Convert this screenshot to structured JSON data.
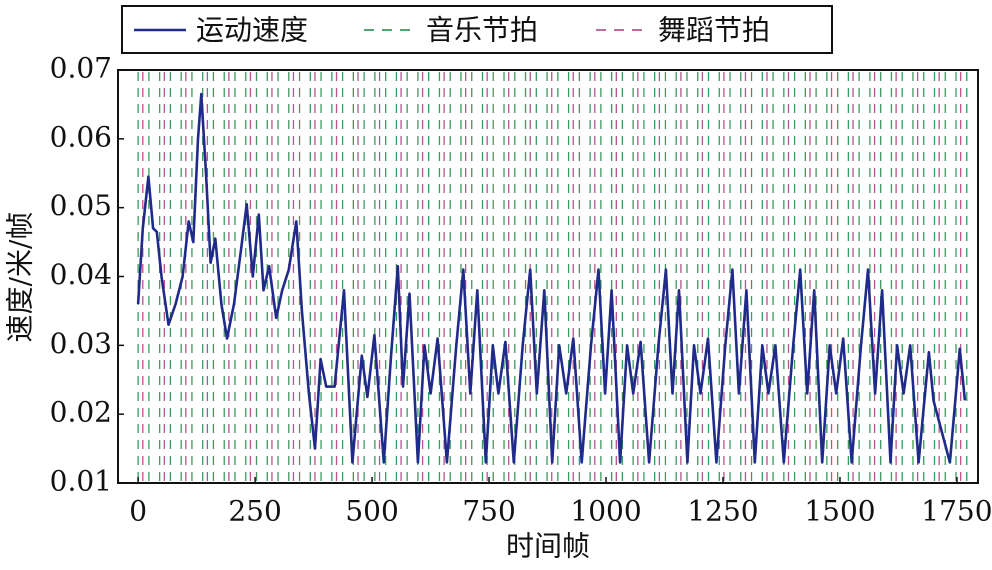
{
  "chart_data": {
    "type": "line",
    "xlabel": "时间帧",
    "ylabel": "速度/米/帧",
    "xlim": [
      -43,
      1795
    ],
    "ylim": [
      0.01,
      0.07
    ],
    "xticks": [
      0,
      250,
      500,
      750,
      1000,
      1250,
      1500,
      1750
    ],
    "yticks": [
      0.01,
      0.02,
      0.03,
      0.04,
      0.05,
      0.06,
      0.07
    ],
    "legend": "top",
    "series": [
      {
        "name": "运动速度",
        "color": "#1f2a8a",
        "x": [
          0,
          10,
          22,
          32,
          40,
          50,
          65,
          80,
          95,
          108,
          118,
          128,
          135,
          145,
          155,
          165,
          178,
          190,
          205,
          220,
          232,
          245,
          258,
          268,
          280,
          295,
          308,
          322,
          338,
          350,
          365,
          378,
          390,
          402,
          420,
          440,
          458,
          478,
          490,
          505,
          525,
          540,
          555,
          566,
          580,
          598,
          612,
          625,
          640,
          660,
          680,
          695,
          710,
          725,
          743,
          758,
          770,
          785,
          803,
          822,
          838,
          852,
          868,
          885,
          900,
          915,
          930,
          948,
          968,
          984,
          998,
          1012,
          1030,
          1045,
          1058,
          1074,
          1092,
          1112,
          1128,
          1142,
          1156,
          1174,
          1188,
          1202,
          1218,
          1236,
          1255,
          1270,
          1284,
          1300,
          1318,
          1334,
          1347,
          1362,
          1380,
          1400,
          1415,
          1430,
          1445,
          1462,
          1478,
          1492,
          1507,
          1525,
          1545,
          1560,
          1575,
          1590,
          1608,
          1622,
          1636,
          1650,
          1668,
          1690,
          1700,
          1735,
          1756,
          1767
        ],
        "values": [
          0.036,
          0.047,
          0.0545,
          0.047,
          0.0465,
          0.04,
          0.033,
          0.036,
          0.04,
          0.048,
          0.045,
          0.06,
          0.0665,
          0.055,
          0.042,
          0.0455,
          0.036,
          0.031,
          0.036,
          0.044,
          0.0505,
          0.04,
          0.049,
          0.038,
          0.0415,
          0.034,
          0.038,
          0.041,
          0.048,
          0.035,
          0.023,
          0.015,
          0.028,
          0.024,
          0.024,
          0.038,
          0.013,
          0.0285,
          0.0225,
          0.0315,
          0.013,
          0.028,
          0.0415,
          0.024,
          0.0375,
          0.013,
          0.03,
          0.023,
          0.031,
          0.013,
          0.03,
          0.041,
          0.023,
          0.038,
          0.013,
          0.03,
          0.023,
          0.0305,
          0.013,
          0.03,
          0.041,
          0.023,
          0.038,
          0.013,
          0.03,
          0.023,
          0.031,
          0.013,
          0.03,
          0.041,
          0.023,
          0.038,
          0.013,
          0.03,
          0.023,
          0.0305,
          0.013,
          0.03,
          0.041,
          0.023,
          0.038,
          0.013,
          0.03,
          0.023,
          0.031,
          0.013,
          0.03,
          0.041,
          0.023,
          0.038,
          0.013,
          0.03,
          0.023,
          0.03,
          0.013,
          0.03,
          0.041,
          0.023,
          0.038,
          0.013,
          0.03,
          0.023,
          0.031,
          0.013,
          0.03,
          0.041,
          0.023,
          0.038,
          0.013,
          0.03,
          0.023,
          0.03,
          0.013,
          0.029,
          0.022,
          0.013,
          0.0295,
          0.022
        ]
      }
    ],
    "vlines": [
      {
        "name": "音乐节拍",
        "color": "#3c9a5c",
        "x": [
          0,
          23,
          46,
          69,
          92,
          115,
          138,
          161,
          184,
          207,
          230,
          253,
          276,
          299,
          322,
          345,
          368,
          391,
          414,
          437,
          460,
          483,
          506,
          529,
          552,
          575,
          598,
          621,
          644,
          667,
          690,
          713,
          736,
          759,
          782,
          805,
          828,
          851,
          874,
          897,
          920,
          943,
          966,
          989,
          1012,
          1035,
          1058,
          1081,
          1104,
          1127,
          1150,
          1173,
          1196,
          1219,
          1242,
          1265,
          1288,
          1311,
          1334,
          1357,
          1380,
          1403,
          1426,
          1449,
          1472,
          1495,
          1518,
          1541,
          1564,
          1587,
          1610,
          1633,
          1656,
          1679,
          1702,
          1725,
          1748,
          1771
        ]
      },
      {
        "name": "舞蹈节拍",
        "color": "#b4558e",
        "x": [
          10,
          56,
          102,
          148,
          194,
          240,
          286,
          332,
          378,
          424,
          470,
          516,
          562,
          608,
          654,
          700,
          746,
          792,
          838,
          884,
          930,
          976,
          1022,
          1068,
          1114,
          1160,
          1206,
          1252,
          1298,
          1344,
          1390,
          1436,
          1482,
          1528,
          1574,
          1620,
          1666,
          1712,
          1758
        ]
      }
    ]
  }
}
